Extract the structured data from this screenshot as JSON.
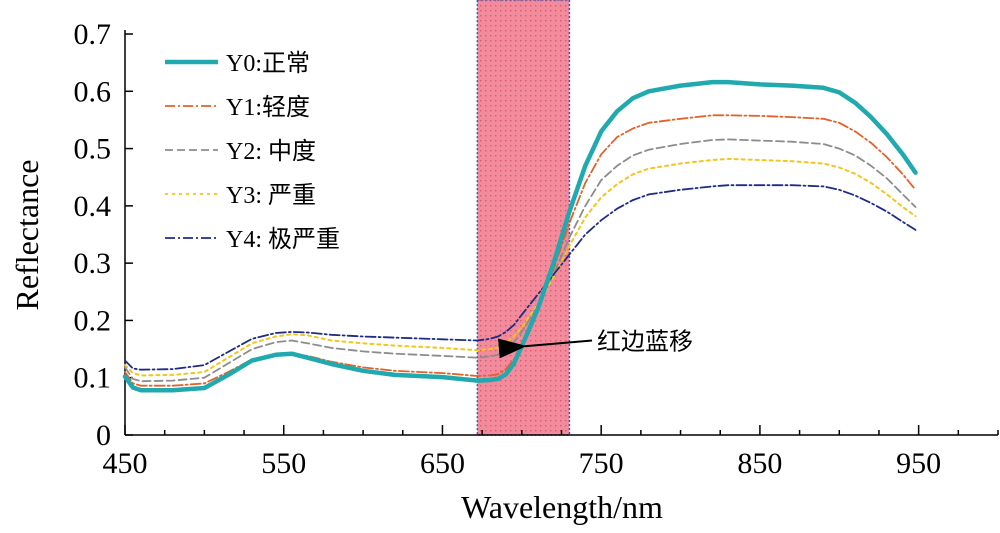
{
  "chart_data": {
    "type": "line",
    "xlabel": "Wavelength/nm",
    "ylabel": "Reflectance",
    "xlim": [
      450,
      1000
    ],
    "ylim": [
      0,
      0.7
    ],
    "xticks": [
      450,
      550,
      650,
      750,
      850,
      950
    ],
    "yticks": [
      0,
      0.1,
      0.2,
      0.3,
      0.4,
      0.5,
      0.6,
      0.7
    ],
    "ytick_labels": [
      "0",
      "0.1",
      "0.2",
      "0.3",
      "0.4",
      "0.5",
      "0.6",
      "0.7"
    ],
    "highlight_band": {
      "x0": 672,
      "x1": 730,
      "fill": "#f28b9c",
      "edge": "#2e5ab5"
    },
    "legend_position": "top-left",
    "annotation": {
      "text": "红边蓝移",
      "target": [
        693,
        0.155
      ],
      "text_at": [
        760,
        0.165
      ]
    },
    "series": [
      {
        "name": "Y0:正常",
        "color": "#20a9ae",
        "dash": "solid",
        "width": 4.5,
        "x": [
          450,
          455,
          460,
          480,
          500,
          515,
          530,
          545,
          555,
          565,
          580,
          600,
          620,
          650,
          672,
          680,
          685,
          690,
          695,
          700,
          710,
          720,
          730,
          740,
          750,
          760,
          770,
          780,
          800,
          820,
          830,
          850,
          870,
          890,
          900,
          910,
          920,
          930,
          940,
          948
        ],
        "values": [
          0.102,
          0.083,
          0.078,
          0.078,
          0.082,
          0.105,
          0.13,
          0.14,
          0.142,
          0.135,
          0.124,
          0.112,
          0.105,
          0.101,
          0.095,
          0.096,
          0.098,
          0.106,
          0.125,
          0.155,
          0.22,
          0.3,
          0.39,
          0.47,
          0.53,
          0.565,
          0.588,
          0.6,
          0.61,
          0.616,
          0.616,
          0.612,
          0.61,
          0.606,
          0.598,
          0.58,
          0.555,
          0.525,
          0.49,
          0.458
        ]
      },
      {
        "name": "Y1:轻度",
        "color": "#e2622a",
        "dash": "10,3,2,3",
        "width": 1.8,
        "x": [
          450,
          455,
          460,
          480,
          500,
          515,
          530,
          545,
          555,
          565,
          580,
          600,
          620,
          650,
          672,
          680,
          685,
          690,
          695,
          700,
          710,
          720,
          730,
          740,
          750,
          760,
          770,
          780,
          800,
          820,
          830,
          850,
          870,
          890,
          900,
          910,
          920,
          930,
          940,
          948
        ],
        "values": [
          0.11,
          0.09,
          0.086,
          0.086,
          0.09,
          0.11,
          0.132,
          0.14,
          0.142,
          0.138,
          0.128,
          0.118,
          0.112,
          0.108,
          0.103,
          0.104,
          0.106,
          0.115,
          0.132,
          0.16,
          0.22,
          0.29,
          0.37,
          0.44,
          0.49,
          0.52,
          0.535,
          0.545,
          0.552,
          0.558,
          0.558,
          0.557,
          0.555,
          0.552,
          0.545,
          0.53,
          0.51,
          0.485,
          0.455,
          0.428
        ]
      },
      {
        "name": "Y2: 中度",
        "color": "#8c8c8c",
        "dash": "8,4",
        "width": 1.8,
        "x": [
          450,
          455,
          460,
          480,
          500,
          515,
          530,
          545,
          555,
          565,
          580,
          600,
          620,
          650,
          672,
          680,
          685,
          690,
          695,
          700,
          710,
          720,
          730,
          740,
          750,
          760,
          770,
          780,
          800,
          820,
          830,
          850,
          870,
          890,
          900,
          910,
          920,
          930,
          940,
          948
        ],
        "values": [
          0.118,
          0.098,
          0.094,
          0.095,
          0.1,
          0.125,
          0.15,
          0.162,
          0.165,
          0.16,
          0.152,
          0.146,
          0.142,
          0.138,
          0.135,
          0.137,
          0.14,
          0.148,
          0.162,
          0.18,
          0.225,
          0.28,
          0.345,
          0.4,
          0.445,
          0.47,
          0.488,
          0.498,
          0.508,
          0.515,
          0.516,
          0.514,
          0.512,
          0.508,
          0.5,
          0.488,
          0.47,
          0.448,
          0.42,
          0.398
        ]
      },
      {
        "name": "Y3: 严重",
        "color": "#f5c518",
        "dash": "3,4",
        "width": 2,
        "x": [
          450,
          455,
          460,
          480,
          500,
          515,
          530,
          545,
          555,
          565,
          580,
          600,
          620,
          650,
          672,
          680,
          685,
          690,
          695,
          700,
          710,
          720,
          730,
          740,
          750,
          760,
          770,
          780,
          800,
          820,
          830,
          850,
          870,
          890,
          900,
          910,
          920,
          930,
          940,
          948
        ],
        "values": [
          0.122,
          0.108,
          0.104,
          0.105,
          0.11,
          0.135,
          0.16,
          0.172,
          0.176,
          0.174,
          0.165,
          0.16,
          0.156,
          0.152,
          0.148,
          0.15,
          0.153,
          0.16,
          0.172,
          0.188,
          0.228,
          0.275,
          0.33,
          0.38,
          0.415,
          0.438,
          0.455,
          0.465,
          0.474,
          0.48,
          0.482,
          0.48,
          0.478,
          0.474,
          0.467,
          0.456,
          0.44,
          0.42,
          0.398,
          0.382
        ]
      },
      {
        "name": "Y4: 极严重",
        "color": "#1f2b84",
        "dash": "10,3,2,3",
        "width": 1.8,
        "x": [
          450,
          455,
          460,
          480,
          500,
          515,
          530,
          545,
          555,
          565,
          580,
          600,
          620,
          650,
          672,
          680,
          685,
          690,
          695,
          700,
          710,
          720,
          730,
          740,
          750,
          760,
          770,
          780,
          800,
          820,
          830,
          850,
          870,
          890,
          900,
          910,
          920,
          930,
          940,
          948
        ],
        "values": [
          0.13,
          0.116,
          0.114,
          0.115,
          0.122,
          0.145,
          0.168,
          0.178,
          0.18,
          0.179,
          0.175,
          0.172,
          0.17,
          0.167,
          0.165,
          0.168,
          0.172,
          0.18,
          0.192,
          0.21,
          0.245,
          0.28,
          0.315,
          0.35,
          0.375,
          0.395,
          0.41,
          0.42,
          0.428,
          0.434,
          0.436,
          0.436,
          0.436,
          0.434,
          0.428,
          0.418,
          0.405,
          0.39,
          0.372,
          0.358
        ]
      }
    ]
  }
}
